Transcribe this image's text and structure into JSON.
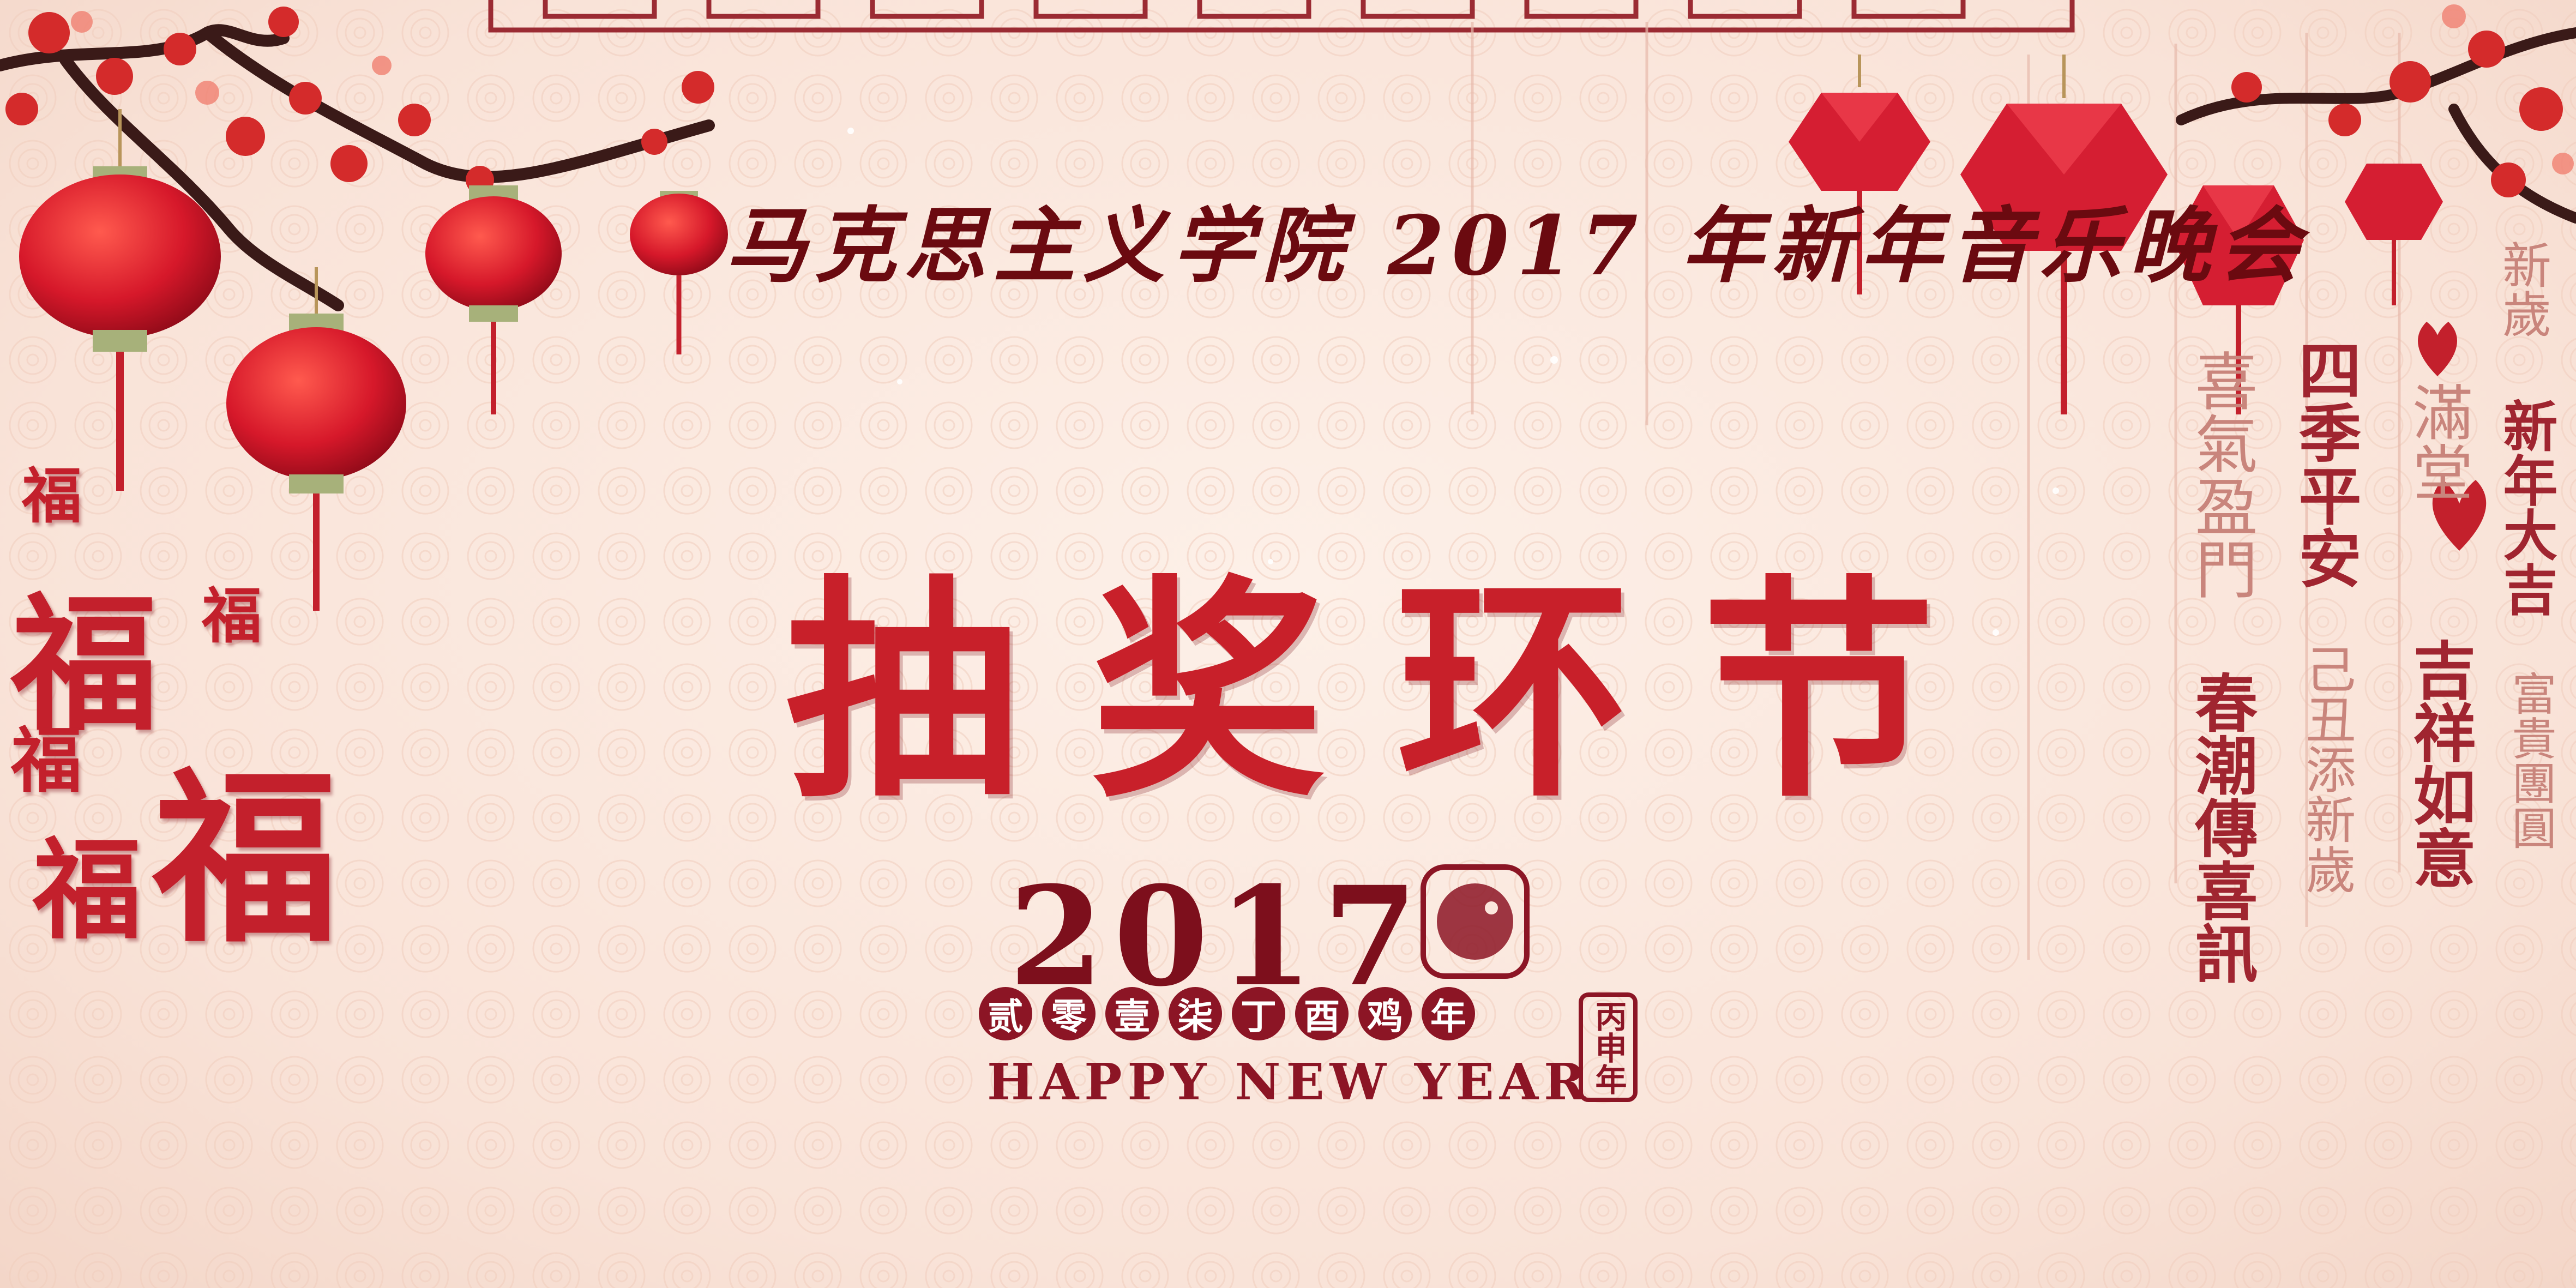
{
  "header": {
    "subtitle": "马克思主义学院 2017 年新年音乐晚会"
  },
  "main": {
    "title": "抽奖环节"
  },
  "badge": {
    "year": "2017",
    "chinese_date": [
      "贰",
      "零",
      "壹",
      "柒",
      "丁",
      "酉",
      "鸡",
      "年"
    ],
    "greeting": "HAPPY NEW YEAR",
    "seal_text": "丙申年"
  },
  "fu": {
    "char": "福"
  },
  "calligraphy": [
    "新歲",
    "新年大吉",
    "富貴團圓",
    "吉祥如意",
    "四季平安",
    "己丑添新歲",
    "喜氣盈門",
    "春潮傳喜訊",
    "滿堂"
  ],
  "colors": {
    "accent": "#c3202c",
    "dark_red": "#8c1525",
    "background": "#fbe6dc"
  }
}
